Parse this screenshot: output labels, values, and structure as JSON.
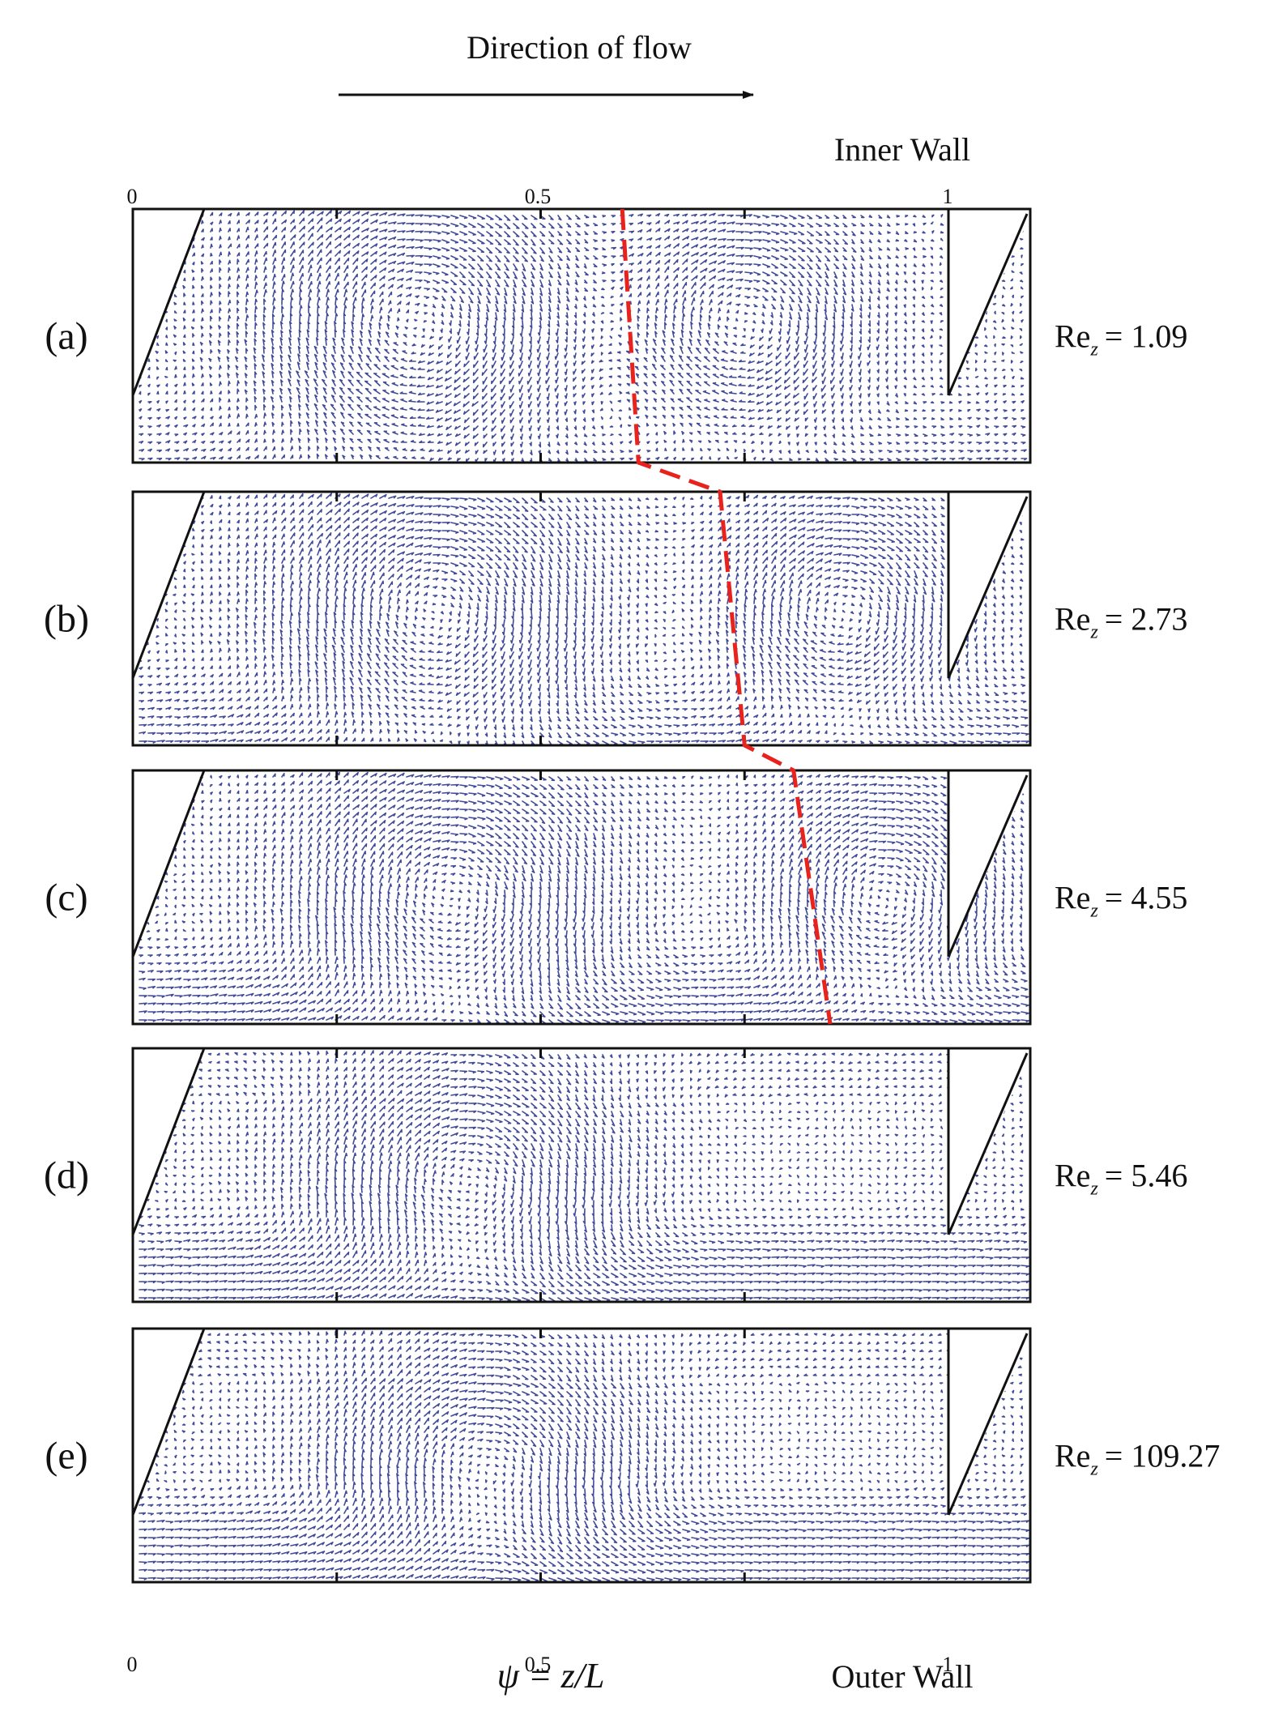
{
  "header": {
    "title": "Direction of flow"
  },
  "walls": {
    "top": "Inner Wall",
    "bottom": "Outer Wall"
  },
  "axis": {
    "ticks": [
      "0",
      "0.5",
      "1"
    ],
    "xlabel": "ψ = z/L"
  },
  "panels": [
    {
      "label": "(a)",
      "re_base": "Re",
      "re_sub": "z",
      "re_value": "= 1.09",
      "divider": [
        0.6,
        0.62
      ]
    },
    {
      "label": "(b)",
      "re_base": "Re",
      "re_sub": "z",
      "re_value": "= 2.73",
      "divider": [
        0.72,
        0.75
      ]
    },
    {
      "label": "(c)",
      "re_base": "Re",
      "re_sub": "z",
      "re_value": "= 4.55",
      "divider": [
        0.81,
        0.855
      ]
    },
    {
      "label": "(d)",
      "re_base": "Re",
      "re_sub": "z",
      "re_value": "= 5.46",
      "divider": null
    },
    {
      "label": "(e)",
      "re_base": "Re",
      "re_sub": "z",
      "re_value": "= 109.27",
      "divider": null
    }
  ],
  "colors": {
    "vector": "#1f2a86",
    "divider": "#e8231d",
    "frame": "#111111"
  }
}
